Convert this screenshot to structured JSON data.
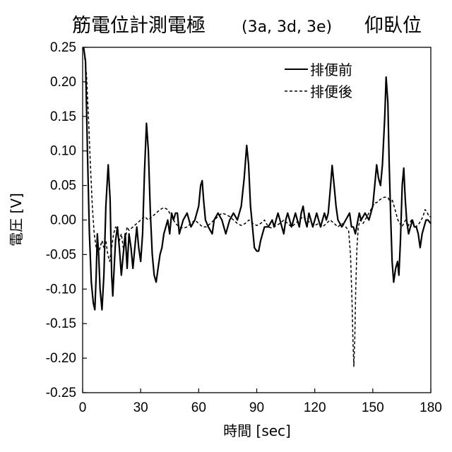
{
  "chart_data": {
    "type": "line",
    "title": "筋電位計測電極",
    "title_suffix": "(3a, 3d, 3e)",
    "title_posture": "仰臥位",
    "xlabel": "時間 [sec]",
    "ylabel": "電圧 [V]",
    "xlim": [
      0,
      180
    ],
    "ylim": [
      -0.25,
      0.25
    ],
    "xticks": [
      "0",
      "30",
      "60",
      "90",
      "120",
      "150",
      "180"
    ],
    "yticks": [
      "0.25",
      "0.20",
      "0.15",
      "0.10",
      "0.05",
      "0.00",
      "-0.05",
      "-0.10",
      "-0.15",
      "-0.20",
      "-0.25"
    ],
    "grid": false,
    "legend_position": "top-right",
    "series": [
      {
        "name": "排便前",
        "style": "solid",
        "points": [
          [
            0.5,
            0.25
          ],
          [
            1.5,
            0.23
          ],
          [
            2.5,
            0.1
          ],
          [
            3.5,
            -0.02
          ],
          [
            4.5,
            -0.09
          ],
          [
            5.5,
            -0.12
          ],
          [
            6.3,
            -0.13
          ],
          [
            7.0,
            -0.08
          ],
          [
            7.6,
            -0.02
          ],
          [
            8.3,
            -0.05
          ],
          [
            9.0,
            -0.1
          ],
          [
            10.0,
            -0.13
          ],
          [
            11.0,
            -0.08
          ],
          [
            12.0,
            0.02
          ],
          [
            13.2,
            0.08
          ],
          [
            14.2,
            0.03
          ],
          [
            15.0,
            -0.08
          ],
          [
            15.6,
            -0.11
          ],
          [
            16.3,
            -0.07
          ],
          [
            17.0,
            -0.03
          ],
          [
            18.0,
            -0.01
          ],
          [
            19.0,
            -0.04
          ],
          [
            20.0,
            -0.08
          ],
          [
            21.0,
            -0.05
          ],
          [
            22.0,
            -0.02
          ],
          [
            23.0,
            -0.07
          ],
          [
            24.0,
            -0.02
          ],
          [
            25.0,
            -0.04
          ],
          [
            26.0,
            -0.07
          ],
          [
            27.0,
            -0.04
          ],
          [
            28.0,
            -0.01
          ],
          [
            29.0,
            -0.04
          ],
          [
            30.0,
            -0.06
          ],
          [
            31.0,
            -0.02
          ],
          [
            32.0,
            0.07
          ],
          [
            33.0,
            0.14
          ],
          [
            34.0,
            0.1
          ],
          [
            35.0,
            0.01
          ],
          [
            36.0,
            -0.05
          ],
          [
            37.0,
            -0.08
          ],
          [
            38.0,
            -0.09
          ],
          [
            39.0,
            -0.07
          ],
          [
            40.0,
            -0.05
          ],
          [
            41.0,
            -0.04
          ],
          [
            42.0,
            -0.02
          ],
          [
            43.0,
            -0.01
          ],
          [
            44.0,
            0.0
          ],
          [
            45.0,
            -0.02
          ],
          [
            46.0,
            0.01
          ],
          [
            47.0,
            0.0
          ],
          [
            48.0,
            0.01
          ],
          [
            49.0,
            0.01
          ],
          [
            50.0,
            -0.02
          ],
          [
            52.0,
            0.0
          ],
          [
            54.0,
            0.01
          ],
          [
            56.0,
            -0.01
          ],
          [
            58.0,
            0.0
          ],
          [
            60.0,
            0.02
          ],
          [
            61.0,
            0.05
          ],
          [
            61.8,
            0.057
          ],
          [
            62.5,
            0.03
          ],
          [
            63.5,
            0.0
          ],
          [
            65.0,
            -0.01
          ],
          [
            67.0,
            -0.02
          ],
          [
            68.0,
            0.0
          ],
          [
            70.0,
            0.01
          ],
          [
            72.0,
            0.0
          ],
          [
            74.0,
            -0.02
          ],
          [
            76.0,
            0.0
          ],
          [
            78.0,
            0.01
          ],
          [
            80.0,
            0.0
          ],
          [
            82.0,
            0.02
          ],
          [
            83.5,
            0.06
          ],
          [
            84.8,
            0.108
          ],
          [
            85.8,
            0.08
          ],
          [
            86.8,
            0.02
          ],
          [
            87.8,
            -0.01
          ],
          [
            88.8,
            -0.04
          ],
          [
            90.0,
            -0.045
          ],
          [
            91.0,
            -0.045
          ],
          [
            92.0,
            -0.03
          ],
          [
            93.0,
            -0.02
          ],
          [
            94.0,
            -0.01
          ],
          [
            96.0,
            -0.01
          ],
          [
            98.0,
            0.0
          ],
          [
            99.0,
            -0.01
          ],
          [
            100.0,
            0.0
          ],
          [
            101.0,
            0.01
          ],
          [
            102.0,
            0.0
          ],
          [
            103.0,
            -0.01
          ],
          [
            104.0,
            -0.02
          ],
          [
            105.0,
            0.0
          ],
          [
            106.0,
            0.01
          ],
          [
            107.0,
            0.0
          ],
          [
            108.0,
            -0.01
          ],
          [
            110.0,
            0.01
          ],
          [
            111.0,
            0.0
          ],
          [
            112.0,
            -0.01
          ],
          [
            113.0,
            0.01
          ],
          [
            114.0,
            0.02
          ],
          [
            115.0,
            0.0
          ],
          [
            116.0,
            -0.01
          ],
          [
            117.0,
            0.01
          ],
          [
            118.0,
            0.0
          ],
          [
            119.0,
            -0.01
          ],
          [
            120.0,
            0.0
          ],
          [
            121.0,
            0.01
          ],
          [
            122.0,
            0.0
          ],
          [
            123.0,
            -0.01
          ],
          [
            124.0,
            0.0
          ],
          [
            125.0,
            0.01
          ],
          [
            126.0,
            0.0
          ],
          [
            127.0,
            0.01
          ],
          [
            128.2,
            0.05
          ],
          [
            129.0,
            0.079
          ],
          [
            130.0,
            0.05
          ],
          [
            131.0,
            0.02
          ],
          [
            132.0,
            0.0
          ],
          [
            134.0,
            -0.01
          ],
          [
            136.0,
            0.0
          ],
          [
            138.0,
            0.01
          ],
          [
            139.0,
            -0.01
          ],
          [
            140.0,
            -0.01
          ],
          [
            141.0,
            -0.02
          ],
          [
            142.0,
            -0.005
          ],
          [
            143.0,
            0.01
          ],
          [
            144.0,
            0.0
          ],
          [
            146.0,
            0.01
          ],
          [
            148.0,
            0.0
          ],
          [
            150.0,
            0.02
          ],
          [
            151.0,
            0.05
          ],
          [
            152.0,
            0.08
          ],
          [
            153.0,
            0.06
          ],
          [
            154.0,
            0.05
          ],
          [
            155.0,
            0.08
          ],
          [
            156.2,
            0.15
          ],
          [
            156.9,
            0.207
          ],
          [
            157.8,
            0.17
          ],
          [
            158.5,
            0.08
          ],
          [
            159.3,
            0.0
          ],
          [
            160.0,
            -0.06
          ],
          [
            160.8,
            -0.09
          ],
          [
            161.8,
            -0.07
          ],
          [
            162.8,
            -0.06
          ],
          [
            163.5,
            -0.08
          ],
          [
            164.3,
            -0.03
          ],
          [
            165.2,
            0.05
          ],
          [
            166.0,
            0.075
          ],
          [
            166.8,
            0.03
          ],
          [
            167.5,
            0.0
          ],
          [
            168.5,
            -0.02
          ],
          [
            169.5,
            -0.01
          ],
          [
            170.5,
            0.0
          ],
          [
            171.5,
            -0.01
          ],
          [
            172.5,
            -0.01
          ],
          [
            173.5,
            -0.02
          ],
          [
            174.5,
            -0.04
          ],
          [
            175.5,
            -0.02
          ],
          [
            176.5,
            -0.01
          ],
          [
            177.5,
            0.0
          ],
          [
            178.5,
            0.0
          ],
          [
            180.0,
            -0.005
          ]
        ]
      },
      {
        "name": "排便後",
        "style": "dashed",
        "points": [
          [
            0.5,
            0.25
          ],
          [
            2.0,
            0.21
          ],
          [
            3.0,
            0.15
          ],
          [
            4.0,
            0.08
          ],
          [
            5.0,
            0.02
          ],
          [
            6.0,
            -0.02
          ],
          [
            7.0,
            -0.04
          ],
          [
            8.0,
            -0.05
          ],
          [
            9.0,
            -0.04
          ],
          [
            10.0,
            -0.03
          ],
          [
            11.0,
            -0.04
          ],
          [
            12.0,
            -0.03
          ],
          [
            13.0,
            -0.05
          ],
          [
            14.0,
            -0.06
          ],
          [
            15.0,
            -0.04
          ],
          [
            16.0,
            -0.02
          ],
          [
            17.0,
            -0.01
          ],
          [
            18.0,
            -0.02
          ],
          [
            19.0,
            -0.03
          ],
          [
            20.0,
            -0.02
          ],
          [
            21.0,
            -0.04
          ],
          [
            22.0,
            -0.03
          ],
          [
            23.0,
            -0.01
          ],
          [
            24.0,
            -0.015
          ],
          [
            26.0,
            -0.01
          ],
          [
            28.0,
            -0.005
          ],
          [
            30.0,
            0.0
          ],
          [
            32.0,
            0.005
          ],
          [
            34.0,
            0.0
          ],
          [
            36.0,
            0.005
          ],
          [
            38.0,
            0.01
          ],
          [
            40.0,
            0.015
          ],
          [
            42.0,
            0.018
          ],
          [
            44.0,
            0.015
          ],
          [
            46.0,
            0.005
          ],
          [
            48.0,
            -0.005
          ],
          [
            50.0,
            -0.01
          ],
          [
            52.0,
            -0.012
          ],
          [
            54.0,
            -0.01
          ],
          [
            56.0,
            -0.005
          ],
          [
            58.0,
            0.0
          ],
          [
            60.0,
            -0.005
          ],
          [
            62.0,
            -0.01
          ],
          [
            64.0,
            -0.01
          ],
          [
            66.0,
            -0.005
          ],
          [
            68.0,
            0.0
          ],
          [
            70.0,
            0.005
          ],
          [
            72.0,
            0.01
          ],
          [
            74.0,
            0.008
          ],
          [
            76.0,
            0.005
          ],
          [
            78.0,
            0.0
          ],
          [
            80.0,
            -0.005
          ],
          [
            82.0,
            -0.008
          ],
          [
            84.0,
            -0.005
          ],
          [
            86.0,
            0.0
          ],
          [
            88.0,
            -0.005
          ],
          [
            90.0,
            -0.008
          ],
          [
            92.0,
            -0.005
          ],
          [
            94.0,
            0.0
          ],
          [
            96.0,
            -0.01
          ],
          [
            98.0,
            -0.012
          ],
          [
            100.0,
            -0.008
          ],
          [
            102.0,
            -0.005
          ],
          [
            104.0,
            0.0
          ],
          [
            106.0,
            -0.005
          ],
          [
            108.0,
            -0.01
          ],
          [
            110.0,
            -0.005
          ],
          [
            112.0,
            0.0
          ],
          [
            114.0,
            0.005
          ],
          [
            116.0,
            0.0
          ],
          [
            118.0,
            -0.005
          ],
          [
            120.0,
            -0.008
          ],
          [
            122.0,
            -0.005
          ],
          [
            124.0,
            -0.01
          ],
          [
            126.0,
            -0.005
          ],
          [
            128.0,
            0.0
          ],
          [
            130.0,
            -0.005
          ],
          [
            132.0,
            -0.01
          ],
          [
            134.0,
            -0.005
          ],
          [
            136.0,
            -0.01
          ],
          [
            137.5,
            -0.015
          ],
          [
            138.5,
            -0.05
          ],
          [
            139.3,
            -0.12
          ],
          [
            139.8,
            -0.18
          ],
          [
            140.2,
            -0.212
          ],
          [
            140.7,
            -0.17
          ],
          [
            141.2,
            -0.1
          ],
          [
            141.8,
            -0.04
          ],
          [
            142.5,
            -0.01
          ],
          [
            143.5,
            0.0
          ],
          [
            145.0,
            -0.005
          ],
          [
            146.0,
            0.0
          ],
          [
            147.0,
            0.005
          ],
          [
            148.0,
            0.01
          ],
          [
            149.0,
            0.015
          ],
          [
            150.0,
            0.02
          ],
          [
            151.0,
            0.025
          ],
          [
            152.0,
            0.025
          ],
          [
            153.0,
            0.028
          ],
          [
            154.0,
            0.03
          ],
          [
            155.0,
            0.032
          ],
          [
            156.0,
            0.033
          ],
          [
            157.0,
            0.033
          ],
          [
            158.0,
            0.032
          ],
          [
            159.0,
            0.025
          ],
          [
            160.0,
            0.03
          ],
          [
            161.0,
            0.02
          ],
          [
            162.0,
            0.01
          ],
          [
            163.0,
            0.0
          ],
          [
            164.0,
            -0.005
          ],
          [
            165.0,
            -0.01
          ],
          [
            166.0,
            -0.005
          ],
          [
            167.0,
            0.0
          ],
          [
            168.0,
            -0.01
          ],
          [
            169.0,
            -0.005
          ],
          [
            170.0,
            0.0
          ],
          [
            171.0,
            -0.005
          ],
          [
            172.0,
            -0.01
          ],
          [
            173.0,
            -0.008
          ],
          [
            174.0,
            -0.005
          ],
          [
            175.0,
            0.0
          ],
          [
            176.0,
            0.005
          ],
          [
            177.0,
            0.015
          ],
          [
            178.0,
            0.012
          ],
          [
            179.0,
            0.005
          ],
          [
            180.0,
            0.005
          ]
        ]
      }
    ]
  }
}
